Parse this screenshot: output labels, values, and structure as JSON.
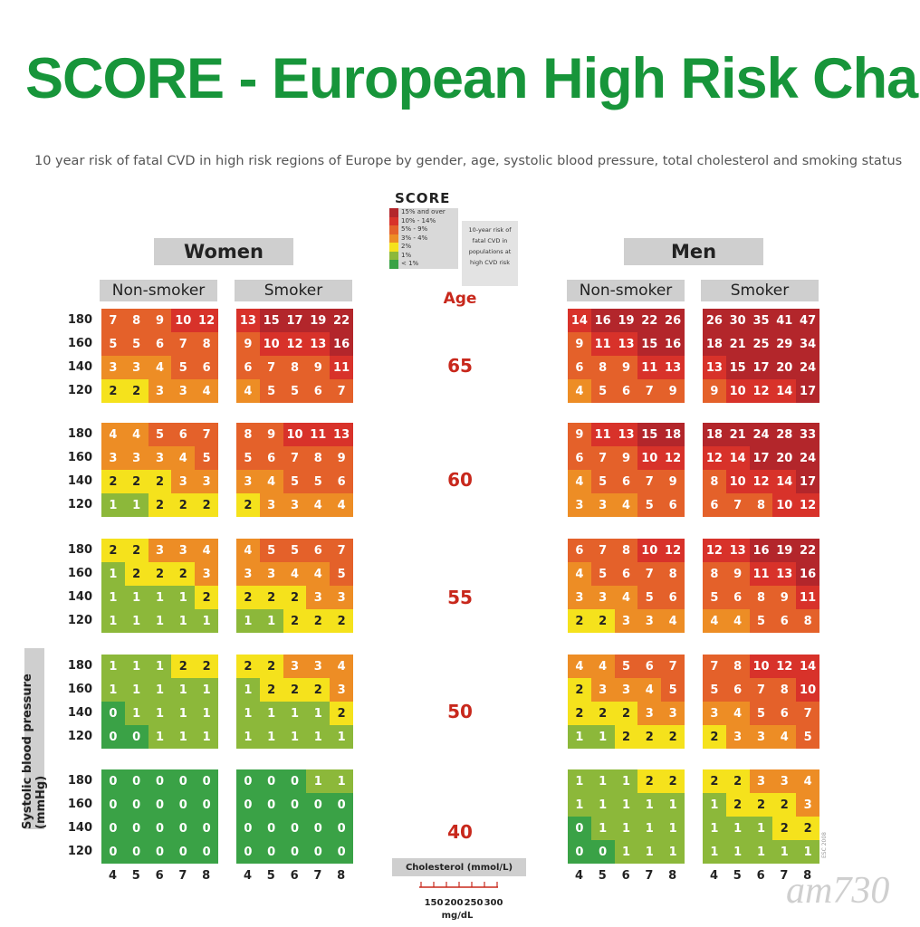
{
  "title": "SCORE - European High Risk Chart",
  "subtitle": "10 year risk of fatal CVD in high risk regions of Europe by gender, age, systolic blood pressure, total cholesterol and smoking status",
  "legend": {
    "logo": "SCORE",
    "levels": [
      {
        "label": "15% and over",
        "color": "#b3262b"
      },
      {
        "label": "10% - 14%",
        "color": "#d8322a"
      },
      {
        "label": "5% - 9%",
        "color": "#e4612a"
      },
      {
        "label": "3% - 4%",
        "color": "#ed8d25"
      },
      {
        "label": "2%",
        "color": "#f5e21c"
      },
      {
        "label": "1%",
        "color": "#8cb83a"
      },
      {
        "label": "< 1%",
        "color": "#3aa246"
      }
    ],
    "note": "10-year risk of fatal CVD in populations at high CVD risk"
  },
  "headers": {
    "women": "Women",
    "men": "Men",
    "non_smoker": "Non-smoker",
    "smoker": "Smoker",
    "age": "Age",
    "y_axis": "Systolic blood pressure (mmHg)",
    "cholesterol": "Cholesterol (mmol/L)",
    "mgdl_unit": "mg/dL",
    "mgdl_ticks": [
      "150",
      "200",
      "250",
      "300"
    ]
  },
  "watermark": "am730",
  "side_code": "ESC 2008",
  "chart_data": {
    "type": "heatmap",
    "ages": [
      "65",
      "60",
      "55",
      "50",
      "40"
    ],
    "sbp": [
      "180",
      "160",
      "140",
      "120"
    ],
    "cholesterol": [
      "4",
      "5",
      "6",
      "7",
      "8"
    ],
    "groups": {
      "women_non_smoker": [
        [
          [
            7,
            8,
            9,
            10,
            12
          ],
          [
            5,
            5,
            6,
            7,
            8
          ],
          [
            3,
            3,
            4,
            5,
            6
          ],
          [
            2,
            2,
            3,
            3,
            4
          ]
        ],
        [
          [
            4,
            4,
            5,
            6,
            7
          ],
          [
            3,
            3,
            3,
            4,
            5
          ],
          [
            2,
            2,
            2,
            3,
            3
          ],
          [
            1,
            1,
            2,
            2,
            2
          ]
        ],
        [
          [
            2,
            2,
            3,
            3,
            4
          ],
          [
            1,
            2,
            2,
            2,
            3
          ],
          [
            1,
            1,
            1,
            1,
            2
          ],
          [
            1,
            1,
            1,
            1,
            1
          ]
        ],
        [
          [
            1,
            1,
            1,
            2,
            2
          ],
          [
            1,
            1,
            1,
            1,
            1
          ],
          [
            0,
            1,
            1,
            1,
            1
          ],
          [
            0,
            0,
            1,
            1,
            1
          ]
        ],
        [
          [
            0,
            0,
            0,
            0,
            0
          ],
          [
            0,
            0,
            0,
            0,
            0
          ],
          [
            0,
            0,
            0,
            0,
            0
          ],
          [
            0,
            0,
            0,
            0,
            0
          ]
        ]
      ],
      "women_smoker": [
        [
          [
            13,
            15,
            17,
            19,
            22
          ],
          [
            9,
            10,
            12,
            13,
            16
          ],
          [
            6,
            7,
            8,
            9,
            11
          ],
          [
            4,
            5,
            5,
            6,
            7
          ]
        ],
        [
          [
            8,
            9,
            10,
            11,
            13
          ],
          [
            5,
            6,
            7,
            8,
            9
          ],
          [
            3,
            4,
            5,
            5,
            6
          ],
          [
            2,
            3,
            3,
            4,
            4
          ]
        ],
        [
          [
            4,
            5,
            5,
            6,
            7
          ],
          [
            3,
            3,
            4,
            4,
            5
          ],
          [
            2,
            2,
            2,
            3,
            3
          ],
          [
            1,
            1,
            2,
            2,
            2
          ]
        ],
        [
          [
            2,
            2,
            3,
            3,
            4
          ],
          [
            1,
            2,
            2,
            2,
            3
          ],
          [
            1,
            1,
            1,
            1,
            2
          ],
          [
            1,
            1,
            1,
            1,
            1
          ]
        ],
        [
          [
            0,
            0,
            0,
            1,
            1
          ],
          [
            0,
            0,
            0,
            0,
            0
          ],
          [
            0,
            0,
            0,
            0,
            0
          ],
          [
            0,
            0,
            0,
            0,
            0
          ]
        ]
      ],
      "men_non_smoker": [
        [
          [
            14,
            16,
            19,
            22,
            26
          ],
          [
            9,
            11,
            13,
            15,
            16
          ],
          [
            6,
            8,
            9,
            11,
            13
          ],
          [
            4,
            5,
            6,
            7,
            9
          ]
        ],
        [
          [
            9,
            11,
            13,
            15,
            18
          ],
          [
            6,
            7,
            9,
            10,
            12
          ],
          [
            4,
            5,
            6,
            7,
            9
          ],
          [
            3,
            3,
            4,
            5,
            6
          ]
        ],
        [
          [
            6,
            7,
            8,
            10,
            12
          ],
          [
            4,
            5,
            6,
            7,
            8
          ],
          [
            3,
            3,
            4,
            5,
            6
          ],
          [
            2,
            2,
            3,
            3,
            4
          ]
        ],
        [
          [
            4,
            4,
            5,
            6,
            7
          ],
          [
            2,
            3,
            3,
            4,
            5
          ],
          [
            2,
            2,
            2,
            3,
            3
          ],
          [
            1,
            1,
            2,
            2,
            2
          ]
        ],
        [
          [
            1,
            1,
            1,
            2,
            2
          ],
          [
            1,
            1,
            1,
            1,
            1
          ],
          [
            0,
            1,
            1,
            1,
            1
          ],
          [
            0,
            0,
            1,
            1,
            1
          ]
        ]
      ],
      "men_smoker": [
        [
          [
            26,
            30,
            35,
            41,
            47
          ],
          [
            18,
            21,
            25,
            29,
            34
          ],
          [
            13,
            15,
            17,
            20,
            24
          ],
          [
            9,
            10,
            12,
            14,
            17
          ]
        ],
        [
          [
            18,
            21,
            24,
            28,
            33
          ],
          [
            12,
            14,
            17,
            20,
            24
          ],
          [
            8,
            10,
            12,
            14,
            17
          ],
          [
            6,
            7,
            8,
            10,
            12
          ]
        ],
        [
          [
            12,
            13,
            16,
            19,
            22
          ],
          [
            8,
            9,
            11,
            13,
            16
          ],
          [
            5,
            6,
            8,
            9,
            11
          ],
          [
            4,
            4,
            5,
            6,
            8
          ]
        ],
        [
          [
            7,
            8,
            10,
            12,
            14
          ],
          [
            5,
            6,
            7,
            8,
            10
          ],
          [
            3,
            4,
            5,
            6,
            7
          ],
          [
            2,
            3,
            3,
            4,
            5
          ]
        ],
        [
          [
            2,
            2,
            3,
            3,
            4
          ],
          [
            1,
            2,
            2,
            2,
            3
          ],
          [
            1,
            1,
            1,
            2,
            2
          ],
          [
            1,
            1,
            1,
            1,
            1
          ]
        ]
      ]
    }
  }
}
